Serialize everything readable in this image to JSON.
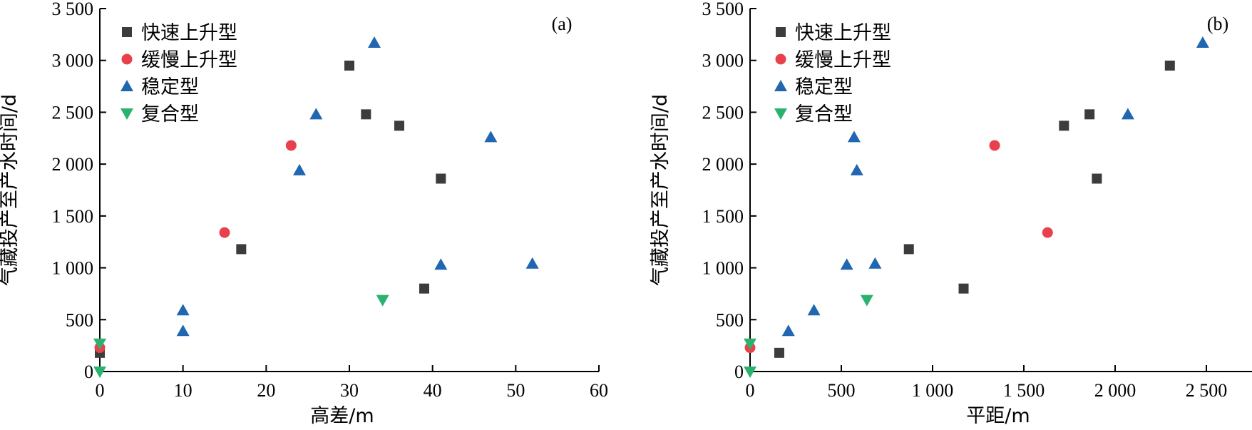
{
  "chart_data": [
    {
      "type": "scatter",
      "panel_label": "(a)",
      "xlabel": "高差/m",
      "ylabel": "气藏投产至产水时间/d",
      "xlim": [
        0,
        60
      ],
      "ylim": [
        0,
        3500
      ],
      "xticks": [
        {
          "value": 0,
          "label": "0"
        },
        {
          "value": 10,
          "label": "10"
        },
        {
          "value": 20,
          "label": "20"
        },
        {
          "value": 30,
          "label": "30"
        },
        {
          "value": 40,
          "label": "40"
        },
        {
          "value": 50,
          "label": "50"
        },
        {
          "value": 60,
          "label": "60"
        }
      ],
      "yticks": [
        {
          "value": 0,
          "label": "0"
        },
        {
          "value": 500,
          "label": "500"
        },
        {
          "value": 1000,
          "label": "1 000"
        },
        {
          "value": 1500,
          "label": "1 500"
        },
        {
          "value": 2000,
          "label": "2 000"
        },
        {
          "value": 2500,
          "label": "2 500"
        },
        {
          "value": 3000,
          "label": "3 000"
        },
        {
          "value": 3500,
          "label": "3 500"
        }
      ],
      "legend_position": "top-left",
      "series": [
        {
          "name": "快速上升型",
          "marker": "square",
          "color": "#3c3c3c",
          "points": [
            [
              0,
              180
            ],
            [
              17,
              1180
            ],
            [
              30,
              2950
            ],
            [
              32,
              2480
            ],
            [
              36,
              2370
            ],
            [
              39,
              800
            ],
            [
              41,
              1860
            ]
          ]
        },
        {
          "name": "缓慢上升型",
          "marker": "circle",
          "color": "#e8414b",
          "points": [
            [
              0,
              230
            ],
            [
              15,
              1340
            ],
            [
              23,
              2180
            ]
          ]
        },
        {
          "name": "稳定型",
          "marker": "triangle-up",
          "color": "#2166b0",
          "points": [
            [
              10,
              590
            ],
            [
              10,
              390
            ],
            [
              24,
              1940
            ],
            [
              26,
              2480
            ],
            [
              33,
              3170
            ],
            [
              41,
              1030
            ],
            [
              47,
              2260
            ],
            [
              52,
              1040
            ]
          ]
        },
        {
          "name": "复合型",
          "marker": "triangle-down",
          "color": "#2ab26e",
          "points": [
            [
              0,
              270
            ],
            [
              0,
              0
            ],
            [
              34,
              690
            ]
          ]
        }
      ]
    },
    {
      "type": "scatter",
      "panel_label": "(b)",
      "xlabel": "平距/m",
      "ylabel": "气藏投产至产水时间/d",
      "xlim": [
        0,
        2750
      ],
      "ylim": [
        0,
        3500
      ],
      "xticks": [
        {
          "value": 0,
          "label": "0"
        },
        {
          "value": 500,
          "label": "500"
        },
        {
          "value": 1000,
          "label": "1 000"
        },
        {
          "value": 1500,
          "label": "1 500"
        },
        {
          "value": 2000,
          "label": "2 000"
        },
        {
          "value": 2500,
          "label": "2 500"
        }
      ],
      "yticks": [
        {
          "value": 0,
          "label": "0"
        },
        {
          "value": 500,
          "label": "500"
        },
        {
          "value": 1000,
          "label": "1 000"
        },
        {
          "value": 1500,
          "label": "1 500"
        },
        {
          "value": 2000,
          "label": "2 000"
        },
        {
          "value": 2500,
          "label": "2 500"
        },
        {
          "value": 3000,
          "label": "3 000"
        },
        {
          "value": 3500,
          "label": "3 500"
        }
      ],
      "legend_position": "top-left",
      "series": [
        {
          "name": "快速上升型",
          "marker": "square",
          "color": "#3c3c3c",
          "points": [
            [
              160,
              180
            ],
            [
              870,
              1180
            ],
            [
              1170,
              800
            ],
            [
              1720,
              2370
            ],
            [
              1860,
              2480
            ],
            [
              1900,
              1860
            ],
            [
              2300,
              2950
            ]
          ]
        },
        {
          "name": "缓慢上升型",
          "marker": "circle",
          "color": "#e8414b",
          "points": [
            [
              0,
              230
            ],
            [
              1340,
              2180
            ],
            [
              1630,
              1340
            ]
          ]
        },
        {
          "name": "稳定型",
          "marker": "triangle-up",
          "color": "#2166b0",
          "points": [
            [
              210,
              390
            ],
            [
              350,
              590
            ],
            [
              530,
              1030
            ],
            [
              570,
              2260
            ],
            [
              585,
              1940
            ],
            [
              685,
              1040
            ],
            [
              2070,
              2480
            ],
            [
              2480,
              3170
            ]
          ]
        },
        {
          "name": "复合型",
          "marker": "triangle-down",
          "color": "#2ab26e",
          "points": [
            [
              0,
              270
            ],
            [
              0,
              0
            ],
            [
              640,
              690
            ]
          ]
        }
      ]
    }
  ]
}
